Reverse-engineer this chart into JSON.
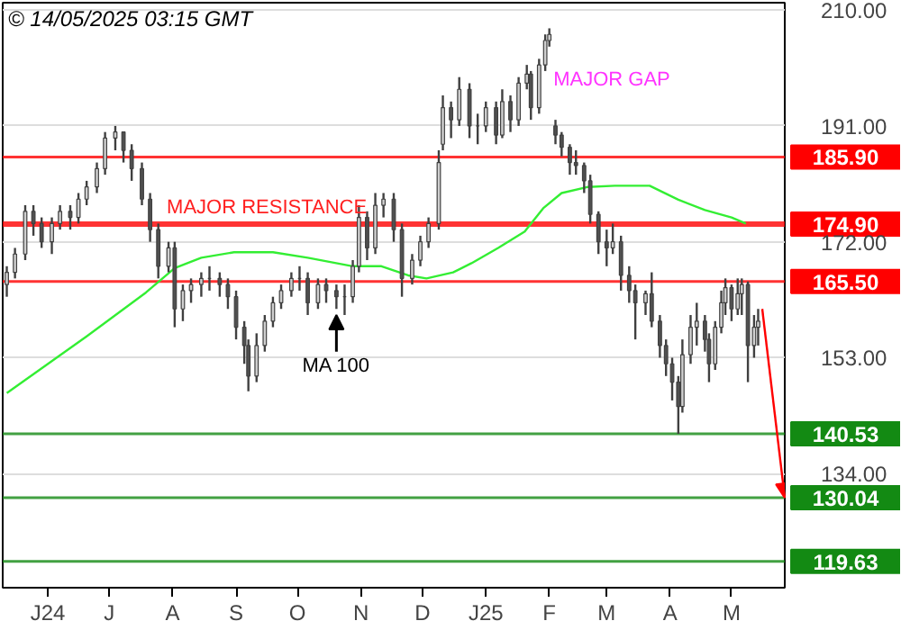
{
  "chart_data": {
    "type": "candlestick",
    "title": "© 14/05/2025 03:15 GMT",
    "color": "#404040",
    "x": [
      "2024-05-12",
      "2024-05-16",
      "2024-05-21",
      "2024-05-25",
      "2024-05-29",
      "2024-06-03",
      "2024-06-07",
      "2024-06-12",
      "2024-06-16",
      "2024-06-20",
      "2024-06-25",
      "2024-06-29",
      "2024-07-04",
      "2024-07-08",
      "2024-07-12",
      "2024-07-17",
      "2024-07-21",
      "2024-07-25",
      "2024-07-30",
      "2024-08-02",
      "2024-08-06",
      "2024-08-10",
      "2024-08-15",
      "2024-08-19",
      "2024-08-24",
      "2024-08-28",
      "2024-09-01",
      "2024-09-05",
      "2024-09-07",
      "2024-09-11",
      "2024-09-15",
      "2024-09-19",
      "2024-09-23",
      "2024-09-28",
      "2024-10-02",
      "2024-10-06",
      "2024-10-11",
      "2024-10-15",
      "2024-10-20",
      "2024-10-24",
      "2024-10-28",
      "2024-10-31",
      "2024-11-04",
      "2024-11-08",
      "2024-11-12",
      "2024-11-17",
      "2024-11-21",
      "2024-11-26",
      "2024-11-30",
      "2024-12-04",
      "2024-12-09",
      "2024-12-11",
      "2024-12-15",
      "2024-12-19",
      "2024-12-24",
      "2024-12-28",
      "2025-01-01",
      "2025-01-06",
      "2025-01-09",
      "2025-01-13",
      "2025-01-17",
      "2025-01-21",
      "2025-01-23",
      "2025-01-27",
      "2025-01-30",
      "2025-02-01",
      "2025-02-04",
      "2025-02-07",
      "2025-02-11",
      "2025-02-14",
      "2025-02-18",
      "2025-02-21",
      "2025-02-25",
      "2025-03-01",
      "2025-03-04",
      "2025-03-08",
      "2025-03-12",
      "2025-03-15",
      "2025-03-20",
      "2025-03-23",
      "2025-03-27",
      "2025-03-30",
      "2025-04-02",
      "2025-04-05",
      "2025-04-07",
      "2025-04-11",
      "2025-04-14",
      "2025-04-18",
      "2025-04-20",
      "2025-04-23",
      "2025-04-26",
      "2025-04-28",
      "2025-05-01",
      "2025-05-04",
      "2025-05-06",
      "2025-05-09",
      "2025-05-12",
      "2025-05-14"
    ],
    "ohlc": [
      [
        165,
        168,
        163,
        167
      ],
      [
        167,
        171,
        166,
        170
      ],
      [
        170,
        178,
        169,
        177
      ],
      [
        177,
        178,
        173,
        175
      ],
      [
        175,
        176,
        171,
        172
      ],
      [
        172,
        176,
        170,
        175
      ],
      [
        175,
        178,
        174,
        177
      ],
      [
        177,
        178,
        174,
        176
      ],
      [
        176,
        180,
        175,
        179
      ],
      [
        179,
        182,
        178,
        181
      ],
      [
        181,
        185,
        180,
        184
      ],
      [
        184,
        190,
        183,
        189
      ],
      [
        189,
        191,
        187,
        190
      ],
      [
        190,
        190,
        185,
        187
      ],
      [
        187,
        188,
        182,
        184
      ],
      [
        184,
        185,
        178,
        179
      ],
      [
        179,
        180,
        172,
        174
      ],
      [
        174,
        175,
        166,
        168
      ],
      [
        168,
        172,
        167,
        171
      ],
      [
        171,
        172,
        158,
        161
      ],
      [
        161,
        165,
        159,
        164
      ],
      [
        164,
        166,
        162,
        165
      ],
      [
        165,
        167,
        163,
        166
      ],
      [
        166,
        168,
        164,
        166
      ],
      [
        166,
        167,
        163,
        165
      ],
      [
        165,
        166,
        161,
        163
      ],
      [
        163,
        164,
        156,
        158
      ],
      [
        158,
        159,
        152,
        155
      ],
      [
        155,
        156,
        147.5,
        150
      ],
      [
        150,
        157,
        149,
        155
      ],
      [
        155,
        160,
        154,
        159
      ],
      [
        159,
        163,
        158,
        162
      ],
      [
        162,
        165,
        161,
        164
      ],
      [
        164,
        167,
        163,
        166
      ],
      [
        166,
        168,
        164,
        166
      ],
      [
        166,
        167,
        160,
        162
      ],
      [
        162,
        166,
        161,
        165
      ],
      [
        165,
        166,
        162,
        164
      ],
      [
        164,
        165,
        161,
        163
      ],
      [
        163,
        165,
        160,
        163
      ],
      [
        163,
        169,
        162,
        168
      ],
      [
        168,
        178,
        167,
        176
      ],
      [
        176,
        177,
        169,
        171
      ],
      [
        171,
        180,
        170,
        178
      ],
      [
        178,
        180,
        176,
        179
      ],
      [
        179,
        180,
        172,
        174
      ],
      [
        174,
        175,
        163,
        166
      ],
      [
        166,
        170,
        165,
        169
      ],
      [
        169,
        173,
        168,
        172
      ],
      [
        172,
        176,
        171,
        175
      ],
      [
        175,
        187,
        174,
        185
      ],
      [
        188,
        196,
        187,
        194
      ],
      [
        194,
        195,
        189,
        192
      ],
      [
        192,
        199,
        191,
        197
      ],
      [
        197,
        198,
        189,
        191
      ],
      [
        191,
        193,
        188,
        191
      ],
      [
        191,
        195,
        190,
        194
      ],
      [
        194,
        195,
        188,
        189.5
      ],
      [
        189.5,
        197,
        189,
        195
      ],
      [
        195,
        196,
        190,
        192
      ],
      [
        192,
        199,
        191,
        198
      ],
      [
        198,
        201,
        197,
        199.5
      ],
      [
        199.5,
        200,
        192,
        194
      ],
      [
        194,
        202,
        193,
        201
      ],
      [
        201,
        206,
        200,
        205
      ],
      [
        205,
        207,
        204,
        206
      ],
      [
        191,
        192,
        188,
        189.5
      ],
      [
        189.5,
        190,
        186,
        187.5
      ],
      [
        187.5,
        188,
        183,
        185
      ],
      [
        185,
        187,
        183,
        184.5
      ],
      [
        184.5,
        185,
        180,
        182
      ],
      [
        182,
        183,
        175,
        176.5
      ],
      [
        176.5,
        177,
        170,
        172
      ],
      [
        172,
        174,
        168,
        171
      ],
      [
        171,
        175,
        170,
        172
      ],
      [
        172,
        173,
        164,
        166.5
      ],
      [
        166.5,
        168,
        162,
        164
      ],
      [
        164,
        165,
        156,
        162
      ],
      [
        162,
        164,
        160,
        163.5
      ],
      [
        163.5,
        167,
        158,
        159
      ],
      [
        159,
        160,
        153,
        155
      ],
      [
        155,
        156,
        150,
        152
      ],
      [
        152,
        153,
        146,
        149
      ],
      [
        149,
        150,
        140.53,
        145
      ],
      [
        145,
        156,
        144,
        153.5
      ],
      [
        153.5,
        160,
        152,
        158
      ],
      [
        158,
        162,
        155,
        159
      ],
      [
        159,
        160,
        154,
        156
      ],
      [
        156,
        157,
        149,
        152
      ],
      [
        152,
        159,
        151,
        158
      ],
      [
        158,
        164,
        157,
        162
      ],
      [
        162,
        166,
        160,
        164.5
      ],
      [
        164.5,
        165,
        159,
        161
      ],
      [
        161,
        166,
        160,
        163.5
      ],
      [
        163.5,
        166,
        160,
        165
      ],
      [
        165,
        165.5,
        149,
        155
      ],
      [
        155,
        160,
        153,
        158
      ],
      [
        158,
        161,
        155,
        159
      ]
    ],
    "series": [
      {
        "type": "line",
        "color": "#33ee33",
        "x": [
          "2024-05-12",
          "2024-06-20",
          "2024-07-19",
          "2024-08-02",
          "2024-08-15",
          "2024-08-31",
          "2024-09-19",
          "2024-10-06",
          "2024-10-28",
          "2024-11-11",
          "2024-11-24",
          "2024-12-03",
          "2024-12-16",
          "2024-12-25",
          "2025-01-07",
          "2025-01-20",
          "2025-01-29",
          "2025-02-07",
          "2025-02-20",
          "2025-03-05",
          "2025-03-22",
          "2025-04-05",
          "2025-04-18",
          "2025-05-01",
          "2025-05-08"
        ],
        "values": [
          147.2,
          156.5,
          163.7,
          167.7,
          169.4,
          170.3,
          170.3,
          169.4,
          168,
          168,
          166.5,
          166,
          167,
          168.5,
          171,
          173.7,
          177.5,
          180,
          181,
          181.2,
          181.2,
          178.9,
          177.2,
          176,
          175
        ]
      }
    ],
    "xlim": [
      "2024-05-10",
      "2025-05-27"
    ],
    "xticks": [
      {
        "value": "2024-06-01",
        "label": "J24"
      },
      {
        "value": "2024-07-01",
        "label": "J"
      },
      {
        "value": "2024-08-01",
        "label": "A"
      },
      {
        "value": "2024-09-01",
        "label": "S"
      },
      {
        "value": "2024-10-01",
        "label": "O"
      },
      {
        "value": "2024-11-01",
        "label": "N"
      },
      {
        "value": "2024-12-01",
        "label": "D"
      },
      {
        "value": "2025-01-01",
        "label": "J25"
      },
      {
        "value": "2025-02-01",
        "label": "F"
      },
      {
        "value": "2025-03-01",
        "label": "M"
      },
      {
        "value": "2025-04-01",
        "label": "A"
      },
      {
        "value": "2025-05-01",
        "label": "M"
      }
    ],
    "ylim": [
      115.3,
      211.2
    ],
    "yticks": [
      {
        "value": 134,
        "label": "134.00"
      },
      {
        "value": 153,
        "label": "153.00"
      },
      {
        "value": 172,
        "label": "172.00"
      },
      {
        "value": 191,
        "label": "191.00"
      },
      {
        "value": 210,
        "label": "210.00"
      }
    ],
    "grid": "y",
    "ref_lines": [
      {
        "axis": "y",
        "value": 185.9,
        "label": "185.90",
        "color": "#ff0000"
      },
      {
        "axis": "y",
        "value": 174.9,
        "label": "174.90",
        "color": "#ff0000"
      },
      {
        "axis": "y",
        "value": 165.5,
        "label": "165.50",
        "color": "#ff0000"
      },
      {
        "axis": "y",
        "value": 140.53,
        "label": "140.53",
        "color": "#138a13"
      },
      {
        "axis": "y",
        "value": 130.04,
        "label": "130.04",
        "color": "#138a13"
      },
      {
        "axis": "y",
        "value": 119.63,
        "label": "119.63",
        "color": "#138a13"
      }
    ],
    "annotations": [
      {
        "text": "MAJOR RESISTANCE",
        "x": "2024-09-16",
        "y": 174.9
      },
      "MAJOR GAP",
      {
        "text": "MA 100",
        "x": "2024-10-20",
        "y": 160
      }
    ]
  }
}
